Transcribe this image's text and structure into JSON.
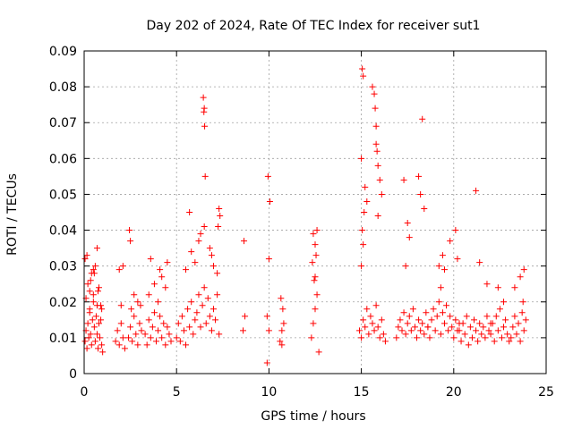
{
  "chart_data": {
    "type": "scatter",
    "title": "Day 202 of 2024, Rate Of TEC Index for receiver sut1",
    "xlabel": "GPS time / hours",
    "ylabel": "ROTI / TECUs",
    "xlim": [
      0,
      25
    ],
    "ylim": [
      0,
      0.09
    ],
    "x_ticks": [
      0,
      5,
      10,
      15,
      20,
      25
    ],
    "x_tick_labels": [
      "0",
      "5",
      "10",
      "15",
      "20",
      "25"
    ],
    "y_ticks": [
      0,
      0.01,
      0.02,
      0.03,
      0.04,
      0.05,
      0.06,
      0.07,
      0.08,
      0.09
    ],
    "y_tick_labels": [
      "0",
      "0.01",
      "0.02",
      "0.03",
      "0.04",
      "0.05",
      "0.06",
      "0.07",
      "0.08",
      "0.09"
    ],
    "grid": true,
    "marker": "plus",
    "color": "#ff0000",
    "series": [
      {
        "x": [
          0.05,
          0.1,
          0.15,
          0.2,
          0.25,
          0.3,
          0.35,
          0.4,
          0.45,
          0.5,
          0.55,
          0.6,
          0.65,
          0.7,
          0.75,
          0.8,
          0.85,
          0.9,
          0.95,
          1.0,
          0.1,
          0.2,
          0.3,
          0.4,
          0.5,
          0.6,
          0.7,
          0.8,
          0.9,
          0.15,
          0.35,
          0.55,
          0.75,
          0.95,
          0.5,
          0.7,
          0.05,
          0.3,
          1.7,
          1.8,
          1.9,
          2.0,
          2.1,
          2.2,
          2.0,
          1.9,
          2.1,
          2.4,
          2.5,
          2.6,
          2.7,
          2.8,
          2.9,
          3.0,
          3.1,
          2.5,
          2.7,
          2.9,
          3.05,
          2.45,
          2.55,
          3.3,
          3.4,
          3.5,
          3.6,
          3.7,
          3.8,
          3.9,
          4.0,
          4.1,
          4.2,
          4.3,
          4.4,
          4.5,
          4.6,
          4.7,
          3.5,
          3.8,
          4.0,
          4.2,
          4.4,
          4.5,
          3.6,
          4.1,
          5.0,
          5.1,
          5.2,
          5.3,
          5.4,
          5.5,
          5.6,
          5.7,
          5.8,
          5.9,
          6.0,
          6.1,
          6.2,
          6.3,
          6.4,
          6.5,
          6.6,
          6.7,
          6.8,
          6.9,
          7.0,
          7.1,
          7.2,
          7.3,
          5.5,
          5.8,
          6.0,
          6.2,
          6.5,
          6.8,
          7.0,
          7.2,
          5.7,
          6.3,
          6.9,
          6.45,
          6.5,
          6.48,
          6.52,
          6.55,
          7.3,
          7.35,
          7.25,
          8.6,
          8.7,
          8.65,
          9.9,
          10.0,
          9.95,
          10.05,
          10.0,
          9.9,
          10.6,
          10.7,
          10.8,
          10.65,
          10.75,
          10.7,
          12.3,
          12.4,
          12.5,
          12.6,
          12.45,
          12.35,
          12.55,
          12.5,
          12.4,
          12.6,
          12.5,
          12.7,
          14.9,
          15.0,
          15.1,
          15.2,
          15.3,
          15.4,
          15.5,
          15.6,
          15.7,
          15.8,
          15.9,
          16.0,
          16.1,
          16.2,
          16.3,
          15.0,
          15.1,
          15.05,
          15.15,
          15.2,
          15.0,
          15.3,
          15.6,
          15.7,
          15.75,
          15.8,
          15.8,
          15.9,
          16.0,
          16.1,
          15.05,
          15.1,
          15.85,
          15.9,
          16.9,
          17.0,
          17.1,
          17.2,
          17.3,
          17.4,
          17.5,
          17.6,
          17.7,
          17.8,
          17.9,
          18.0,
          18.1,
          18.2,
          18.3,
          18.4,
          18.5,
          18.6,
          17.3,
          17.5,
          17.6,
          17.4,
          18.1,
          18.3,
          18.2,
          18.4,
          18.6,
          18.7,
          18.8,
          18.9,
          19.0,
          19.1,
          19.2,
          19.3,
          19.4,
          19.5,
          19.6,
          19.7,
          19.8,
          19.9,
          20.0,
          20.1,
          20.2,
          20.3,
          19.2,
          19.4,
          19.5,
          19.8,
          20.1,
          19.3,
          20.2,
          20.3,
          20.4,
          20.5,
          20.6,
          20.7,
          20.8,
          20.9,
          21.0,
          21.1,
          21.2,
          21.3,
          21.4,
          21.5,
          21.6,
          21.7,
          21.8,
          21.9,
          22.0,
          21.2,
          21.4,
          21.8,
          22.0,
          22.1,
          22.2,
          22.3,
          22.4,
          22.5,
          22.6,
          22.7,
          22.8,
          22.9,
          23.0,
          22.4,
          22.7,
          23.1,
          23.2,
          23.3,
          23.4,
          23.5,
          23.6,
          23.7,
          23.8,
          23.9,
          23.3,
          23.6,
          23.75,
          23.8
        ],
        "y": [
          0.009,
          0.012,
          0.007,
          0.014,
          0.01,
          0.018,
          0.011,
          0.008,
          0.015,
          0.02,
          0.013,
          0.009,
          0.016,
          0.011,
          0.007,
          0.014,
          0.01,
          0.019,
          0.008,
          0.006,
          0.021,
          0.025,
          0.017,
          0.028,
          0.022,
          0.03,
          0.019,
          0.024,
          0.015,
          0.033,
          0.026,
          0.028,
          0.023,
          0.018,
          0.029,
          0.035,
          0.032,
          0.023,
          0.009,
          0.012,
          0.008,
          0.014,
          0.01,
          0.007,
          0.019,
          0.029,
          0.03,
          0.01,
          0.013,
          0.009,
          0.016,
          0.011,
          0.008,
          0.014,
          0.012,
          0.037,
          0.022,
          0.02,
          0.019,
          0.04,
          0.018,
          0.011,
          0.008,
          0.015,
          0.01,
          0.013,
          0.017,
          0.009,
          0.012,
          0.016,
          0.01,
          0.014,
          0.008,
          0.013,
          0.011,
          0.009,
          0.022,
          0.025,
          0.02,
          0.027,
          0.024,
          0.031,
          0.032,
          0.029,
          0.01,
          0.014,
          0.009,
          0.016,
          0.012,
          0.008,
          0.018,
          0.013,
          0.02,
          0.011,
          0.015,
          0.017,
          0.022,
          0.013,
          0.019,
          0.024,
          0.014,
          0.021,
          0.016,
          0.012,
          0.018,
          0.015,
          0.022,
          0.011,
          0.029,
          0.034,
          0.031,
          0.037,
          0.041,
          0.035,
          0.03,
          0.028,
          0.045,
          0.039,
          0.033,
          0.077,
          0.074,
          0.073,
          0.069,
          0.055,
          0.046,
          0.044,
          0.041,
          0.012,
          0.016,
          0.037,
          0.016,
          0.012,
          0.055,
          0.048,
          0.032,
          0.003,
          0.009,
          0.012,
          0.014,
          0.021,
          0.018,
          0.008,
          0.01,
          0.014,
          0.018,
          0.022,
          0.026,
          0.031,
          0.033,
          0.036,
          0.039,
          0.04,
          0.027,
          0.006,
          0.012,
          0.01,
          0.015,
          0.013,
          0.018,
          0.011,
          0.016,
          0.014,
          0.012,
          0.019,
          0.013,
          0.01,
          0.015,
          0.011,
          0.009,
          0.03,
          0.036,
          0.04,
          0.045,
          0.052,
          0.06,
          0.048,
          0.08,
          0.078,
          0.074,
          0.069,
          0.064,
          0.058,
          0.054,
          0.05,
          0.085,
          0.083,
          0.062,
          0.044,
          0.01,
          0.013,
          0.015,
          0.012,
          0.017,
          0.011,
          0.014,
          0.016,
          0.012,
          0.018,
          0.013,
          0.01,
          0.015,
          0.012,
          0.014,
          0.011,
          0.017,
          0.013,
          0.054,
          0.042,
          0.038,
          0.03,
          0.055,
          0.071,
          0.05,
          0.046,
          0.013,
          0.01,
          0.015,
          0.018,
          0.012,
          0.016,
          0.02,
          0.011,
          0.017,
          0.014,
          0.019,
          0.012,
          0.016,
          0.013,
          0.01,
          0.015,
          0.012,
          0.014,
          0.03,
          0.033,
          0.029,
          0.037,
          0.04,
          0.024,
          0.032,
          0.012,
          0.009,
          0.014,
          0.011,
          0.016,
          0.008,
          0.013,
          0.01,
          0.015,
          0.012,
          0.009,
          0.014,
          0.011,
          0.013,
          0.01,
          0.016,
          0.012,
          0.014,
          0.051,
          0.031,
          0.025,
          0.011,
          0.014,
          0.009,
          0.016,
          0.012,
          0.018,
          0.01,
          0.013,
          0.015,
          0.011,
          0.009,
          0.024,
          0.02,
          0.01,
          0.013,
          0.016,
          0.011,
          0.014,
          0.009,
          0.017,
          0.012,
          0.015,
          0.024,
          0.027,
          0.02,
          0.029
        ]
      }
    ]
  }
}
